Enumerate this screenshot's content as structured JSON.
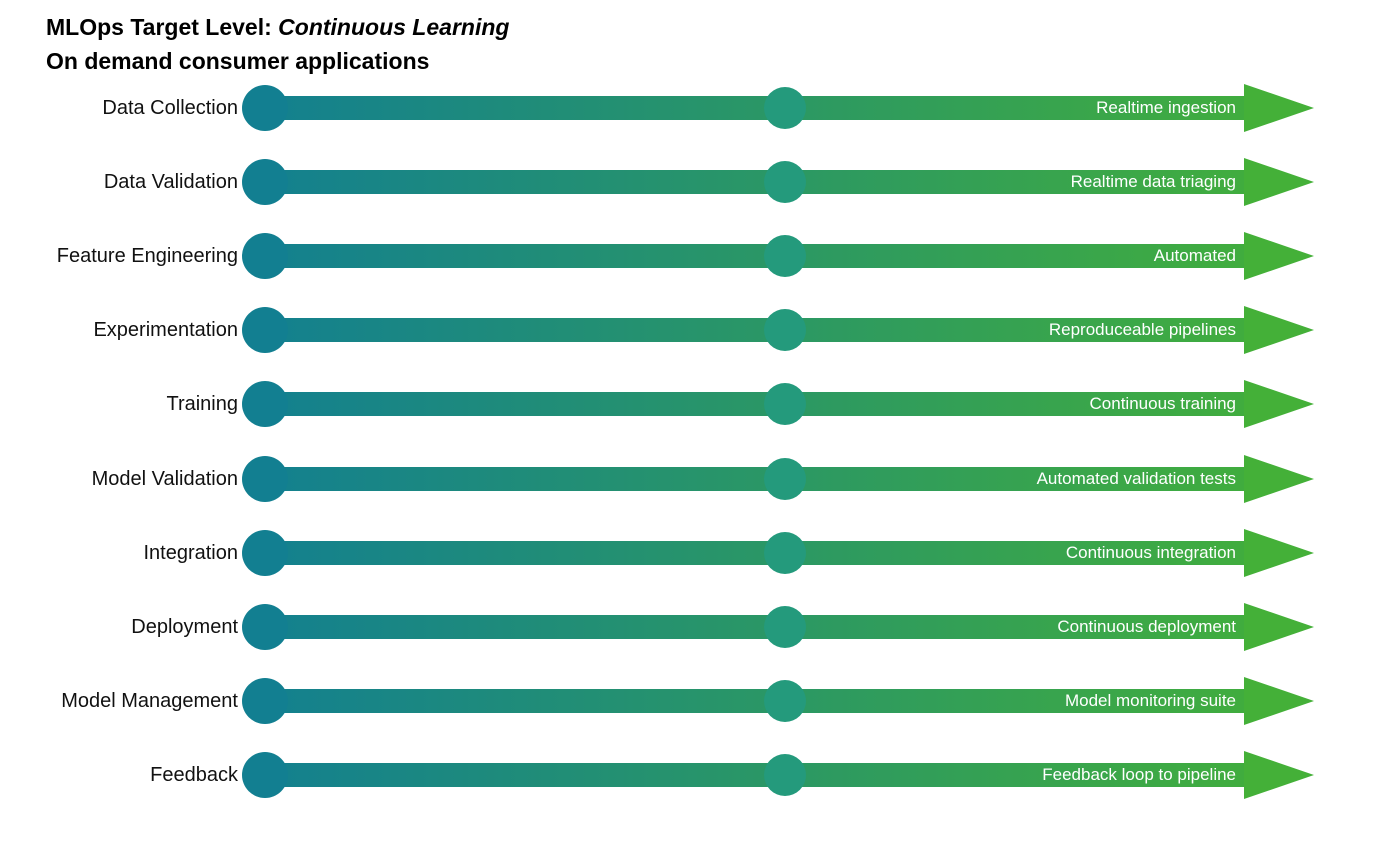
{
  "title": {
    "prefix": "MLOps Target Level: ",
    "emphasis": "Continuous Learning",
    "subtitle": "On demand consumer applications"
  },
  "colors": {
    "start": "#127f91",
    "end": "#44b038",
    "midpoint": "#249a7c"
  },
  "rows": [
    {
      "label": "Data Collection",
      "target": "Realtime ingestion"
    },
    {
      "label": "Data Validation",
      "target": "Realtime data triaging"
    },
    {
      "label": "Feature Engineering",
      "target": "Automated"
    },
    {
      "label": "Experimentation",
      "target": "Reproduceable pipelines"
    },
    {
      "label": "Training",
      "target": "Continuous training"
    },
    {
      "label": "Model Validation",
      "target": "Automated validation tests"
    },
    {
      "label": "Integration",
      "target": "Continuous integration"
    },
    {
      "label": "Deployment",
      "target": "Continuous deployment"
    },
    {
      "label": "Model Management",
      "target": "Model monitoring suite"
    },
    {
      "label": "Feedback",
      "target": "Feedback loop to pipeline"
    }
  ]
}
